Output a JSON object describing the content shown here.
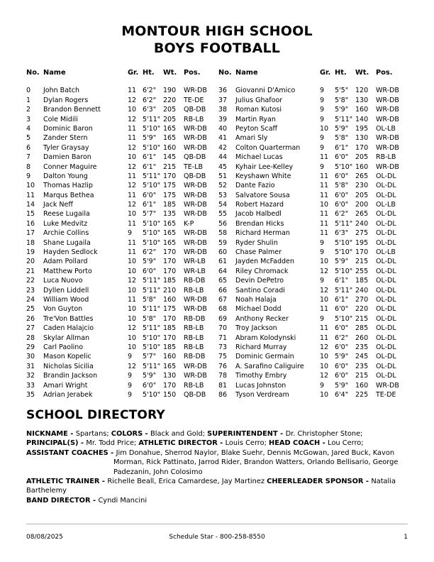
{
  "theme": {
    "page_bg": "#ffffff",
    "text": "#000000",
    "footer_rule": "#b3b3b3"
  },
  "title": {
    "line1": "MONTOUR HIGH SCHOOL",
    "line2": "BOYS FOOTBALL"
  },
  "roster": {
    "headers": [
      "No.",
      "Name",
      "Gr.",
      "Ht.",
      "Wt.",
      "Pos."
    ],
    "left": [
      [
        "0",
        "John Batch",
        "11",
        "6'2\"",
        "190",
        "WR-DB"
      ],
      [
        "1",
        "Dylan Rogers",
        "12",
        "6'2\"",
        "220",
        "TE-DE"
      ],
      [
        "2",
        "Brandon Bennett",
        "10",
        "6'3\"",
        "205",
        "QB-DB"
      ],
      [
        "3",
        "Cole Midili",
        "12",
        "5'11\"",
        "205",
        "RB-LB"
      ],
      [
        "4",
        "Dominic Baron",
        "11",
        "5'10\"",
        "165",
        "WR-DB"
      ],
      [
        "5",
        "Zander Stern",
        "11",
        "5'9\"",
        "165",
        "WR-DB"
      ],
      [
        "6",
        "Tyler Graysay",
        "12",
        "5'10\"",
        "160",
        "WR-DB"
      ],
      [
        "7",
        "Damien Baron",
        "10",
        "6'1\"",
        "145",
        "QB-DB"
      ],
      [
        "8",
        "Conner Maguire",
        "12",
        "6'1\"",
        "215",
        "TE-LB"
      ],
      [
        "9",
        "Dalton Young",
        "11",
        "5'11\"",
        "170",
        "QB-DB"
      ],
      [
        "10",
        "Thomas Hazlip",
        "12",
        "5'10\"",
        "175",
        "WR-DB"
      ],
      [
        "11",
        "Marqus Bethea",
        "11",
        "6'0\"",
        "175",
        "WR-DB"
      ],
      [
        "14",
        "Jack Neff",
        "12",
        "6'1\"",
        "185",
        "WR-DB"
      ],
      [
        "15",
        "Reese Lugaila",
        "10",
        "5'7\"",
        "135",
        "WR-DB"
      ],
      [
        "16",
        "Luke Medvitz",
        "11",
        "5'10\"",
        "165",
        "K-P"
      ],
      [
        "17",
        "Archie Collins",
        "9",
        "5'10\"",
        "165",
        "WR-DB"
      ],
      [
        "18",
        "Shane Lugaila",
        "11",
        "5'10\"",
        "165",
        "WR-DB"
      ],
      [
        "19",
        "Hayden Sedlock",
        "11",
        "6'2\"",
        "170",
        "WR-DB"
      ],
      [
        "20",
        "Adam Pollard",
        "10",
        "5'9\"",
        "170",
        "WR-LB"
      ],
      [
        "21",
        "Matthew Porto",
        "10",
        "6'0\"",
        "170",
        "WR-LB"
      ],
      [
        "22",
        "Luca Nuovo",
        "12",
        "5'11\"",
        "185",
        "RB-DB"
      ],
      [
        "23",
        "Dyllen Liddell",
        "10",
        "5'11\"",
        "210",
        "RB-LB"
      ],
      [
        "24",
        "William Wood",
        "11",
        "5'8\"",
        "160",
        "WR-DB"
      ],
      [
        "25",
        "Von Guyton",
        "10",
        "5'11\"",
        "175",
        "WR-DB"
      ],
      [
        "26",
        "Tre'Von Battles",
        "10",
        "5'8\"",
        "170",
        "RB-DB"
      ],
      [
        "27",
        "Caden Halajcio",
        "12",
        "5'11\"",
        "185",
        "RB-LB"
      ],
      [
        "28",
        "Skylar Allman",
        "10",
        "5'10\"",
        "170",
        "RB-LB"
      ],
      [
        "29",
        "Carl Paolino",
        "10",
        "5'10\"",
        "185",
        "RB-LB"
      ],
      [
        "30",
        "Mason Kopelic",
        "9",
        "5'7\"",
        "160",
        "RB-DB"
      ],
      [
        "31",
        "Nicholas Sicilia",
        "12",
        "5'11\"",
        "165",
        "WR-DB"
      ],
      [
        "32",
        "Brandin Jackson",
        "9",
        "5'9\"",
        "130",
        "WR-DB"
      ],
      [
        "33",
        "Amari Wright",
        "9",
        "6'0\"",
        "170",
        "RB-LB"
      ],
      [
        "35",
        "Adrian Jerabek",
        "9",
        "5'10\"",
        "150",
        "QB-DB"
      ]
    ],
    "right": [
      [
        "36",
        "Giovanni D'Amico",
        "9",
        "5'5\"",
        "120",
        "WR-DB"
      ],
      [
        "37",
        "Julius Ghafoor",
        "9",
        "5'8\"",
        "130",
        "WR-DB"
      ],
      [
        "38",
        "Roman Kutosi",
        "9",
        "5'9\"",
        "160",
        "WR-DB"
      ],
      [
        "39",
        "Martin Ryan",
        "9",
        "5'11\"",
        "140",
        "WR-DB"
      ],
      [
        "40",
        "Peyton Scaff",
        "10",
        "5'9\"",
        "195",
        "OL-LB"
      ],
      [
        "41",
        "Amari Sly",
        "9",
        "5'8\"",
        "130",
        "WR-DB"
      ],
      [
        "42",
        "Colton Quarterman",
        "9",
        "6'1\"",
        "170",
        "WR-DB"
      ],
      [
        "44",
        "Michael Lucas",
        "11",
        "6'0\"",
        "205",
        "RB-LB"
      ],
      [
        "45",
        "Kyhair Lee-Kelley",
        "9",
        "5'10\"",
        "160",
        "WR-DB"
      ],
      [
        "51",
        "Keyshawn White",
        "11",
        "6'0\"",
        "265",
        "OL-DL"
      ],
      [
        "52",
        "Dante Fazio",
        "11",
        "5'8\"",
        "230",
        "OL-DL"
      ],
      [
        "53",
        "Salvatore Sousa",
        "11",
        "6'0\"",
        "205",
        "OL-DL"
      ],
      [
        "54",
        "Robert Hazard",
        "10",
        "6'0\"",
        "200",
        "OL-LB"
      ],
      [
        "55",
        "Jacob Halbedl",
        "11",
        "6'2\"",
        "265",
        "OL-DL"
      ],
      [
        "56",
        "Brendan Hicks",
        "11",
        "5'11\"",
        "240",
        "OL-DL"
      ],
      [
        "58",
        "Richard Herman",
        "11",
        "6'3\"",
        "275",
        "OL-DL"
      ],
      [
        "59",
        "Ryder Shulin",
        "9",
        "5'10\"",
        "195",
        "OL-DL"
      ],
      [
        "60",
        "Chase Palmer",
        "9",
        "5'10\"",
        "170",
        "OL-LB"
      ],
      [
        "61",
        "Jayden McFadden",
        "10",
        "5'9\"",
        "215",
        "OL-DL"
      ],
      [
        "64",
        "Riley Chromack",
        "12",
        "5'10\"",
        "255",
        "OL-DL"
      ],
      [
        "65",
        "Devin DePetro",
        "9",
        "6'1\"",
        "185",
        "OL-DL"
      ],
      [
        "66",
        "Santino Coradi",
        "12",
        "5'11\"",
        "240",
        "OL-DL"
      ],
      [
        "67",
        "Noah Halaja",
        "10",
        "6'1\"",
        "270",
        "OL-DL"
      ],
      [
        "68",
        "Michael Dodd",
        "11",
        "6'0\"",
        "220",
        "OL-DL"
      ],
      [
        "69",
        "Anthony Recker",
        "9",
        "5'10\"",
        "215",
        "OL-DL"
      ],
      [
        "70",
        "Troy Jackson",
        "11",
        "6'0\"",
        "285",
        "OL-DL"
      ],
      [
        "71",
        "Abram Kolodynski",
        "11",
        "6'2\"",
        "260",
        "OL-DL"
      ],
      [
        "73",
        "Richard Murray",
        "12",
        "6'0\"",
        "235",
        "OL-DL"
      ],
      [
        "75",
        "Dominic Germain",
        "10",
        "5'9\"",
        "245",
        "OL-DL"
      ],
      [
        "76",
        "A. Sarafino Caliguire",
        "10",
        "6'0\"",
        "235",
        "OL-DL"
      ],
      [
        "78",
        "Timothy Embry",
        "12",
        "6'0\"",
        "215",
        "OL-DL"
      ],
      [
        "81",
        "Lucas Johnston",
        "9",
        "5'9\"",
        "160",
        "WR-DB"
      ],
      [
        "86",
        "Tyson Verdream",
        "10",
        "6'4\"",
        "225",
        "TE-DE"
      ]
    ]
  },
  "directory": {
    "heading": "SCHOOL DIRECTORY",
    "paragraphs": [
      {
        "hanging": false,
        "segments": [
          {
            "bold": true,
            "text": "NICKNAME - "
          },
          {
            "bold": false,
            "text": "Spartans; "
          },
          {
            "bold": true,
            "text": "COLORS - "
          },
          {
            "bold": false,
            "text": "Black and Gold; "
          },
          {
            "bold": true,
            "text": "SUPERINTENDENT - "
          },
          {
            "bold": false,
            "text": "Dr. Christopher Stone;"
          }
        ]
      },
      {
        "hanging": false,
        "segments": [
          {
            "bold": true,
            "text": "PRINCIPAL(S) - "
          },
          {
            "bold": false,
            "text": "Mr. Todd Price; "
          },
          {
            "bold": true,
            "text": "ATHLETIC DIRECTOR - "
          },
          {
            "bold": false,
            "text": "Louis Cerro; "
          },
          {
            "bold": true,
            "text": "HEAD COACH - "
          },
          {
            "bold": false,
            "text": "Lou Cerro;"
          }
        ]
      },
      {
        "hanging": true,
        "segments": [
          {
            "bold": true,
            "text": "ASSISTANT COACHES - "
          },
          {
            "bold": false,
            "text": "Jim Donahue, Sherrod Naylor, Blake Suehr, Dennis McGowan, Jared Buck, Kavon Morman, Rick Pattinato, Jarrod Rider, Brandon Watters, Orlando Bellisario, George Padezanin, John Colosimo"
          }
        ]
      },
      {
        "hanging": false,
        "segments": [
          {
            "bold": true,
            "text": "ATHLETIC TRAINER - "
          },
          {
            "bold": false,
            "text": "Richelle Beall, Erica Camardese, Jay Martinez "
          },
          {
            "bold": true,
            "text": "CHEERLEADER SPONSOR - "
          },
          {
            "bold": false,
            "text": "Natalia Barthelemy"
          }
        ]
      },
      {
        "hanging": false,
        "segments": [
          {
            "bold": true,
            "text": "BAND DIRECTOR - "
          },
          {
            "bold": false,
            "text": "Cyndi Mancini"
          }
        ]
      }
    ]
  },
  "footer": {
    "date": "08/08/2025",
    "center": "Schedule Star - 800-258-8550",
    "page": "1"
  }
}
